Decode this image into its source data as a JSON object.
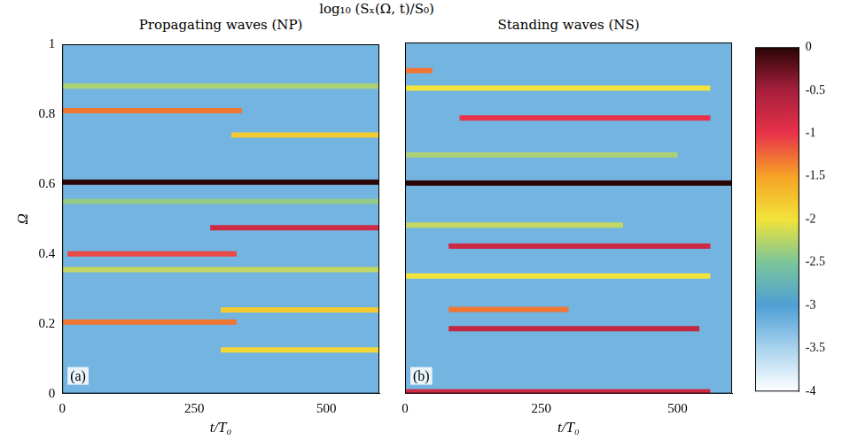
{
  "chart_data": {
    "type": "heatmap",
    "title": "log₁₀ (Sₓ(Ω, t)/S₀)",
    "colorbar": {
      "range": [
        -4,
        0
      ],
      "ticks": [
        0,
        -0.5,
        -1,
        -1.5,
        -2,
        -2.5,
        -3,
        -3.5,
        -4
      ]
    },
    "panels": [
      {
        "title": "Propagating waves (NP)",
        "label": "(a)",
        "xlabel": "t/T₀",
        "ylabel": "Ω",
        "xlim": [
          0,
          600
        ],
        "ylim": [
          0,
          1
        ],
        "xticks": [
          0,
          250,
          500
        ],
        "yticks": [
          0,
          0.2,
          0.4,
          0.6,
          0.8,
          1
        ],
        "background": -3.2,
        "ridges": [
          {
            "omega": 0.88,
            "t": [
              0,
              600
            ],
            "value": -2.3
          },
          {
            "omega": 0.81,
            "t": [
              0,
              340
            ],
            "value": -1.3
          },
          {
            "omega": 0.74,
            "t": [
              320,
              600
            ],
            "value": -1.8
          },
          {
            "omega": 0.55,
            "t": [
              0,
              600
            ],
            "value": -2.4
          },
          {
            "omega": 0.475,
            "t": [
              280,
              600
            ],
            "value": -0.8
          },
          {
            "omega": 0.4,
            "t": [
              10,
              330
            ],
            "value": -1.1
          },
          {
            "omega": 0.355,
            "t": [
              0,
              600
            ],
            "value": -2.2
          },
          {
            "omega": 0.24,
            "t": [
              300,
              600
            ],
            "value": -1.8
          },
          {
            "omega": 0.205,
            "t": [
              0,
              330
            ],
            "value": -1.3
          },
          {
            "omega": 0.125,
            "t": [
              300,
              600
            ],
            "value": -1.9
          },
          {
            "omega": 0.605,
            "t": [
              0,
              600
            ],
            "value": 0
          }
        ]
      },
      {
        "title": "Standing waves (NS)",
        "label": "(b)",
        "xlabel": "t/T₀",
        "xlim": [
          0,
          600
        ],
        "ylim": [
          0,
          1
        ],
        "xticks": [
          0,
          250,
          500
        ],
        "yticks": [
          0,
          0.2,
          0.4,
          0.6,
          0.8,
          1
        ],
        "tick_labels": "x",
        "background": -3.2,
        "ridges": [
          {
            "omega": 0.92,
            "t": [
              0,
              50
            ],
            "value": -1.3
          },
          {
            "omega": 0.87,
            "t": [
              0,
              560
            ],
            "value": -2.0
          },
          {
            "omega": 0.785,
            "t": [
              100,
              560
            ],
            "value": -1.0
          },
          {
            "omega": 0.68,
            "t": [
              0,
              500
            ],
            "value": -2.3
          },
          {
            "omega": 0.48,
            "t": [
              0,
              400
            ],
            "value": -2.2
          },
          {
            "omega": 0.42,
            "t": [
              80,
              560
            ],
            "value": -0.8
          },
          {
            "omega": 0.335,
            "t": [
              0,
              560
            ],
            "value": -2.0
          },
          {
            "omega": 0.24,
            "t": [
              80,
              300
            ],
            "value": -1.3
          },
          {
            "omega": 0.185,
            "t": [
              80,
              540
            ],
            "value": -0.7
          },
          {
            "omega": 0.005,
            "t": [
              0,
              560
            ],
            "value": -0.8
          },
          {
            "omega": 0.6,
            "t": [
              0,
              600
            ],
            "value": 0
          }
        ]
      }
    ]
  }
}
